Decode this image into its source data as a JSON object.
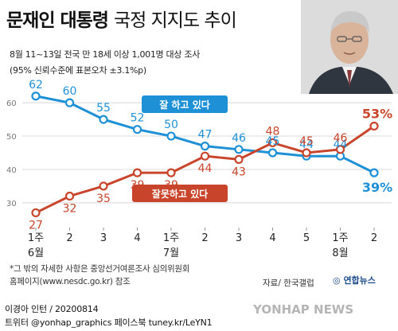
{
  "header": {
    "title_bold": "문재인 대통령",
    "title_rest": "국정 지지도 추이",
    "survey_info": "8월 11~13일 전국 만 18세 이상 1,001명 대상 조사",
    "margin_info": "(95% 신뢰수준에 표본오차 ±3.1%p)"
  },
  "chart_data": {
    "type": "line",
    "x_labels": [
      "1주",
      "2",
      "3",
      "4",
      "1주",
      "2",
      "3",
      "4",
      "5",
      "1주",
      "2"
    ],
    "month_labels": [
      {
        "index": 0,
        "label": "6월"
      },
      {
        "index": 4,
        "label": "7월"
      },
      {
        "index": 9,
        "label": "8월"
      }
    ],
    "y_ticks": [
      30,
      40,
      50,
      60
    ],
    "ylim": [
      24,
      66
    ],
    "series": [
      {
        "name": "잘 하고 있다",
        "color": "#1e90d6",
        "values": [
          62,
          60,
          55,
          52,
          50,
          47,
          46,
          45,
          44,
          44,
          39
        ],
        "last_label": "39%"
      },
      {
        "name": "잘못하고 있다",
        "color": "#c8452b",
        "values": [
          27,
          32,
          35,
          39,
          39,
          44,
          43,
          48,
          45,
          46,
          53
        ],
        "last_label": "53%"
      }
    ]
  },
  "footer": {
    "note_line1": "*그 밖의 자세한 사항은 중앙선거여론조사 심의위원회",
    "note_line2": "홈페이지(www.nesdc.go.kr) 참조",
    "source": "자료/ 한국갤럽",
    "logo_text": "연합뉴스",
    "author": "이경아 인턴 / 20200814",
    "social": "트위터 @yonhap_graphics  페이스북 tuney.kr/LeYN1",
    "watermark": "YONHAP NEWS"
  }
}
